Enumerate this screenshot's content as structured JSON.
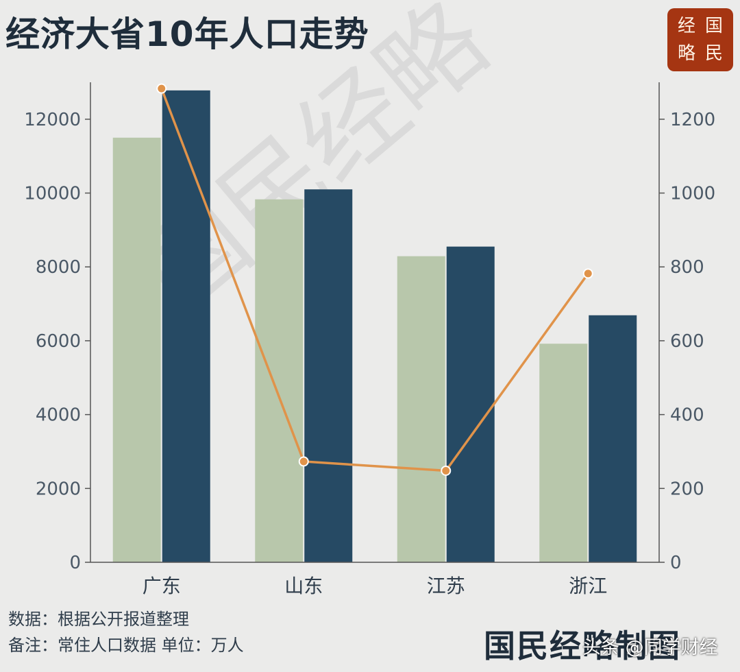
{
  "title": "经济大省10年人口走势",
  "seal": {
    "chars": [
      "经",
      "国",
      "略",
      "民"
    ]
  },
  "watermark": "国民经略",
  "notes": {
    "source": "数据：根据公开报道整理",
    "remark": "备注：常住人口数据    单位：万人"
  },
  "footer_brand": "国民经略制图",
  "overlay_credit": "头条 @同学财经",
  "chart_data": {
    "type": "bar",
    "categories": [
      "广东",
      "山东",
      "江苏",
      "浙江"
    ],
    "series": [
      {
        "name": "",
        "values": [
          11500,
          9830,
          8290,
          5920
        ],
        "color": "#b8c7ab",
        "axis": "left"
      },
      {
        "name": "",
        "values": [
          12780,
          10100,
          8550,
          6690
        ],
        "color": "#264a64",
        "axis": "left"
      },
      {
        "name": "",
        "type": "line",
        "values": [
          1283,
          273,
          248,
          782
        ],
        "color": "#e0934a",
        "axis": "right"
      }
    ],
    "ylim_left": [
      0,
      13000
    ],
    "yticks_left": [
      0,
      2000,
      4000,
      6000,
      8000,
      10000,
      12000
    ],
    "ylim_right": [
      0,
      1300
    ],
    "yticks_right": [
      0,
      200,
      400,
      600,
      800,
      1000,
      1200
    ],
    "grid": false
  }
}
